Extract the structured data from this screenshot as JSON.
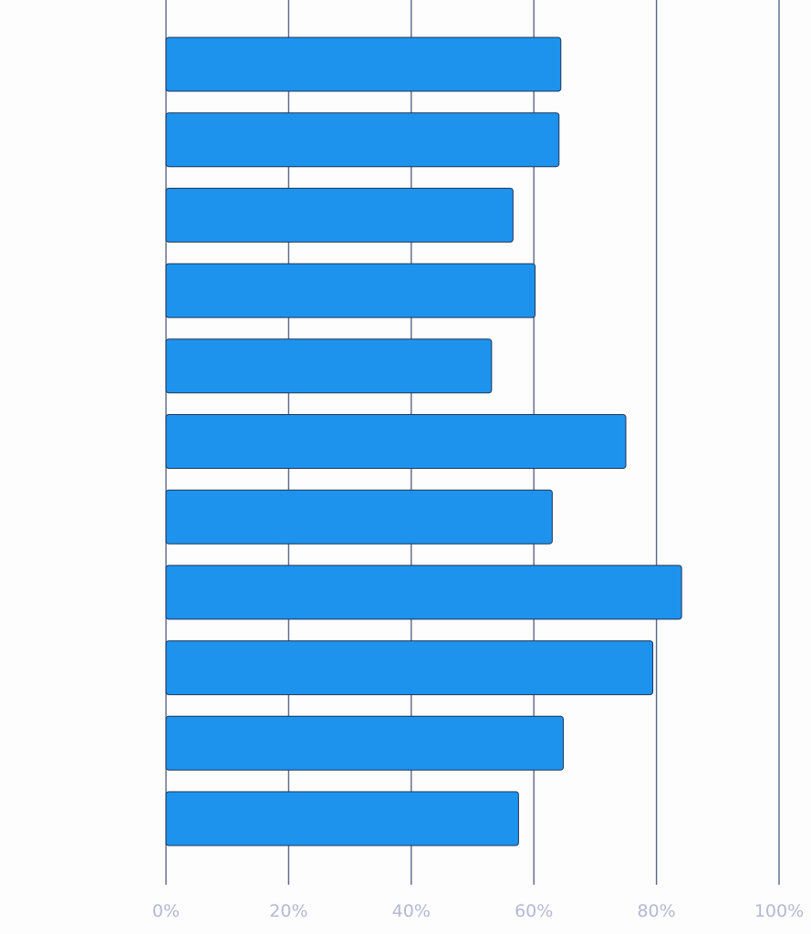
{
  "chart_data": {
    "type": "bar",
    "orientation": "horizontal",
    "title": "",
    "xlabel": "",
    "ylabel": "",
    "xlim": [
      0,
      100
    ],
    "x_ticks": [
      0,
      20,
      40,
      60,
      80,
      100
    ],
    "x_tick_labels": [
      "0%",
      "20%",
      "40%",
      "60%",
      "80%",
      "100%"
    ],
    "categories": [
      "",
      "",
      "",
      "",
      "",
      "",
      "",
      "",
      "",
      "",
      ""
    ],
    "values": [
      64.4,
      64.1,
      56.6,
      60.2,
      53.1,
      75.0,
      63.0,
      84.1,
      79.4,
      64.8,
      57.5
    ],
    "value_unit": "%",
    "grid": "vertical",
    "legend": "none",
    "colors": {
      "bar_fill": "#1e93ee",
      "bar_stroke": "#1f3557",
      "gridline": "#5b6685",
      "tick_label": "#b3b9d3",
      "background": "#fdfdfe"
    }
  }
}
